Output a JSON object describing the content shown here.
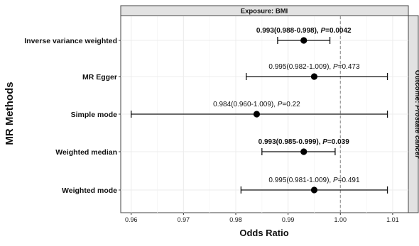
{
  "chart_data": {
    "type": "forest",
    "ylabel": "MR Methods",
    "xlabel": "Odds Ratio",
    "facet_top": "Exposure: BMI",
    "facet_right": "Outcome: Prostate cancer",
    "xlim": [
      0.958,
      1.013
    ],
    "xticks": [
      {
        "value": 0.96,
        "label": "0.96"
      },
      {
        "value": 0.97,
        "label": "0.97"
      },
      {
        "value": 0.98,
        "label": "0.98"
      },
      {
        "value": 0.99,
        "label": "0.99"
      },
      {
        "value": 1.0,
        "label": "1.00"
      },
      {
        "value": 1.01,
        "label": "1.01"
      }
    ],
    "reference_line": 1.0,
    "grid": true,
    "methods": [
      {
        "name": "Inverse variance weighted",
        "or": 0.993,
        "lower": 0.988,
        "upper": 0.998,
        "or_text": "0.993(0.988-0.998), ",
        "p_prefix": "P",
        "p_text": "=0.0042",
        "bold": true
      },
      {
        "name": "MR Egger",
        "or": 0.995,
        "lower": 0.982,
        "upper": 1.009,
        "or_text": "0.995(0.982-1.009), ",
        "p_prefix": "P",
        "p_text": "=0.473",
        "bold": false
      },
      {
        "name": "Simple mode",
        "or": 0.984,
        "lower": 0.96,
        "upper": 1.009,
        "or_text": "0.984(0.960-1.009), ",
        "p_prefix": "P",
        "p_text": "=0.22",
        "bold": false
      },
      {
        "name": "Weighted median",
        "or": 0.993,
        "lower": 0.985,
        "upper": 0.999,
        "or_text": "0.993(0.985-0.999), ",
        "p_prefix": "P",
        "p_text": "=0.039",
        "bold": true
      },
      {
        "name": "Weighted mode",
        "or": 0.995,
        "lower": 0.981,
        "upper": 1.009,
        "or_text": "0.995(0.981-1.009), ",
        "p_prefix": "P",
        "p_text": "=0.491",
        "bold": false
      }
    ]
  }
}
